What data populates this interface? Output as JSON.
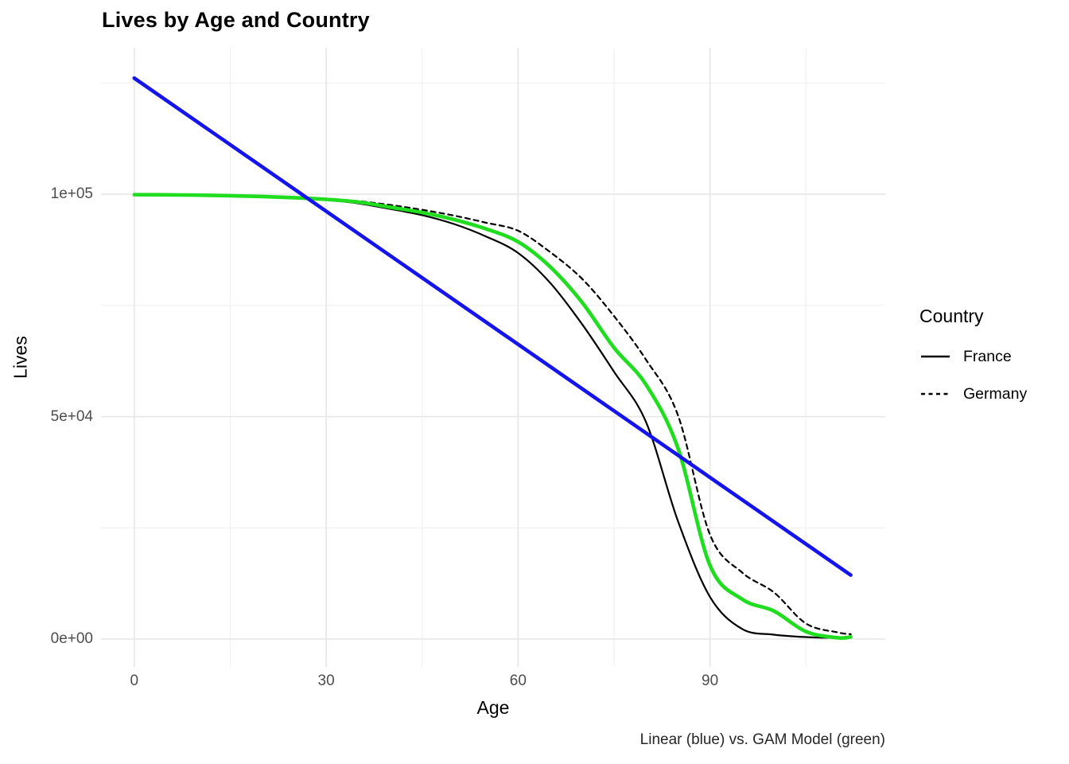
{
  "chart_data": {
    "type": "line",
    "title": "Lives by Age and Country",
    "xlabel": "Age",
    "ylabel": "Lives",
    "caption": "Linear (blue) vs. GAM Model (green)",
    "x_ticks": [
      0,
      30,
      60,
      90
    ],
    "x_minor_ticks": [
      15,
      45,
      75,
      105
    ],
    "y_ticks": [
      {
        "value": 0,
        "label": "0e+00"
      },
      {
        "value": 50000,
        "label": "5e+04"
      },
      {
        "value": 100000,
        "label": "1e+05"
      }
    ],
    "y_minor_ticks": [
      25000,
      75000,
      125000
    ],
    "xlim": [
      -5.2,
      117.4
    ],
    "ylim": [
      -6250,
      132930
    ],
    "grid": true,
    "legend": {
      "title": "Country",
      "position": "right",
      "entries": [
        {
          "label": "France",
          "line_style": "solid"
        },
        {
          "label": "Germany",
          "line_style": "dashed"
        }
      ]
    },
    "colors": {
      "linear_model": "#1414eb",
      "gam_model": "#20dd20",
      "country_lines": "#000000",
      "grid_major": "#e7e7e7",
      "grid_minor": "#f0f0f0",
      "tick_text": "#4d4d4d"
    },
    "ages": [
      0,
      5,
      10,
      15,
      20,
      25,
      30,
      35,
      40,
      45,
      50,
      55,
      60,
      65,
      70,
      75,
      80,
      85,
      90,
      95,
      100,
      105,
      110,
      112
    ],
    "series": [
      {
        "name": "France",
        "curve": "smooth",
        "style": "solid",
        "width": 2.2,
        "color_key": "country_lines",
        "values": [
          100000,
          99920,
          99800,
          99640,
          99420,
          99120,
          98700,
          97950,
          96700,
          95300,
          93300,
          90500,
          86800,
          80100,
          70800,
          60100,
          48800,
          26500,
          9500,
          2300,
          1000,
          450,
          300,
          450
        ]
      },
      {
        "name": "Germany",
        "curve": "smooth",
        "style": "dashed",
        "width": 2.2,
        "color_key": "country_lines",
        "values": [
          100000,
          99950,
          99880,
          99770,
          99590,
          99340,
          99000,
          98450,
          97600,
          96500,
          95200,
          93600,
          91800,
          87000,
          81000,
          72600,
          62800,
          50300,
          23500,
          15000,
          10500,
          3500,
          1500,
          1100
        ]
      },
      {
        "name": "GAM Model",
        "curve": "smooth",
        "style": "solid",
        "width": 4.6,
        "color_key": "gam_model",
        "values": [
          99900,
          99870,
          99790,
          99670,
          99490,
          99220,
          98850,
          98250,
          97100,
          95900,
          94300,
          92200,
          89300,
          83700,
          75700,
          65500,
          57200,
          42900,
          16600,
          9000,
          6300,
          1700,
          300,
          500
        ]
      },
      {
        "name": "Linear Model",
        "curve": "straight",
        "style": "solid",
        "width": 4.6,
        "color_key": "linear_model",
        "x": [
          0,
          112
        ],
        "values": [
          126100,
          14400
        ]
      }
    ]
  }
}
